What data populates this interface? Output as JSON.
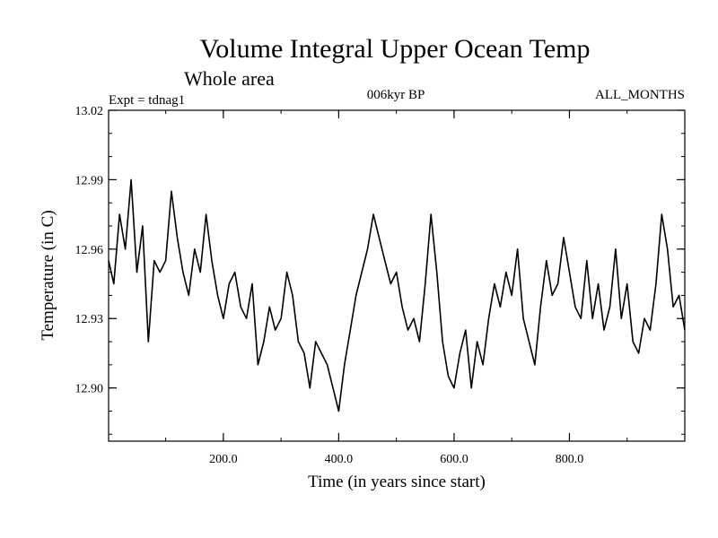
{
  "chart_data": {
    "type": "line",
    "title": "Volume Integral Upper Ocean Temp",
    "subtitle": "Whole area",
    "expt": "Expt = tdnag1",
    "period": "006kyr BP",
    "months": "ALL_MONTHS",
    "xlabel": "Time (in years since start)",
    "ylabel": "Temperature (in C)",
    "xlim": [
      1,
      1000
    ],
    "ylim": [
      12.877,
      13.02
    ],
    "xticks": [
      200,
      400,
      600,
      800
    ],
    "xtick_labels": [
      "200.0",
      "400.0",
      "600.0",
      "800.0"
    ],
    "yticks": [
      12.9,
      12.93,
      12.96,
      12.99,
      13.02
    ],
    "ytick_labels": [
      "12.90",
      "12.93",
      "12.96",
      "12.99",
      "13.02"
    ],
    "series": [
      {
        "name": "Temperature",
        "color": "#000000",
        "x": [
          1,
          10,
          20,
          30,
          40,
          50,
          60,
          70,
          80,
          90,
          100,
          110,
          120,
          130,
          140,
          150,
          160,
          170,
          180,
          190,
          200,
          210,
          220,
          230,
          240,
          250,
          260,
          270,
          280,
          290,
          300,
          310,
          320,
          330,
          340,
          350,
          360,
          370,
          380,
          390,
          400,
          410,
          420,
          430,
          440,
          450,
          460,
          470,
          480,
          490,
          500,
          510,
          520,
          530,
          540,
          550,
          560,
          570,
          580,
          590,
          600,
          610,
          620,
          630,
          640,
          650,
          660,
          670,
          680,
          690,
          700,
          710,
          720,
          730,
          740,
          750,
          760,
          770,
          780,
          790,
          800,
          810,
          820,
          830,
          840,
          850,
          860,
          870,
          880,
          890,
          900,
          910,
          920,
          930,
          940,
          950,
          960,
          970,
          980,
          990,
          1000
        ],
        "values": [
          12.955,
          12.945,
          12.975,
          12.96,
          12.99,
          12.95,
          12.97,
          12.92,
          12.955,
          12.95,
          12.955,
          12.985,
          12.965,
          12.95,
          12.94,
          12.96,
          12.95,
          12.975,
          12.955,
          12.94,
          12.93,
          12.945,
          12.95,
          12.935,
          12.93,
          12.945,
          12.91,
          12.92,
          12.935,
          12.925,
          12.93,
          12.95,
          12.94,
          12.92,
          12.915,
          12.9,
          12.92,
          12.915,
          12.91,
          12.9,
          12.89,
          12.91,
          12.925,
          12.94,
          12.95,
          12.96,
          12.975,
          12.965,
          12.955,
          12.945,
          12.95,
          12.935,
          12.925,
          12.93,
          12.92,
          12.945,
          12.975,
          12.95,
          12.92,
          12.905,
          12.9,
          12.915,
          12.925,
          12.9,
          12.92,
          12.91,
          12.93,
          12.945,
          12.935,
          12.95,
          12.94,
          12.96,
          12.93,
          12.92,
          12.91,
          12.935,
          12.955,
          12.94,
          12.945,
          12.965,
          12.95,
          12.935,
          12.93,
          12.955,
          12.93,
          12.945,
          12.925,
          12.935,
          12.96,
          12.93,
          12.945,
          12.92,
          12.915,
          12.93,
          12.925,
          12.945,
          12.975,
          12.96,
          12.935,
          12.94,
          12.925
        ]
      }
    ]
  }
}
